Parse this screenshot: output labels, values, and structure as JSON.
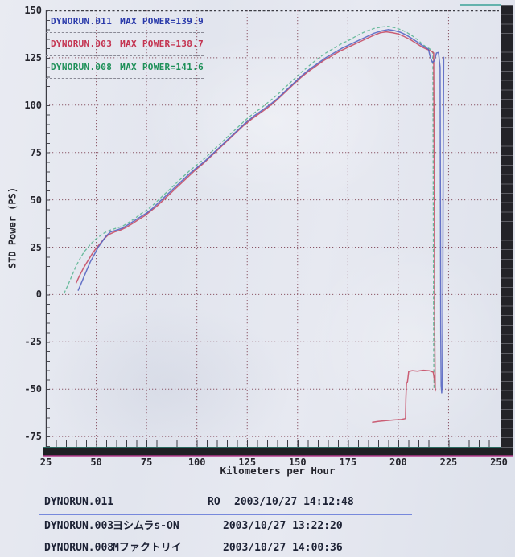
{
  "colors": {
    "paper": "#e4e7ee",
    "grid": "#8a5565",
    "axis_border": "#3c3c44",
    "bottom_bar": "#1f2024",
    "magenta_scan_line": "#b43c8c",
    "row_separator": "#6478d8",
    "run_011": "#2a3aaa",
    "run_003": "#c43350",
    "run_008": "#1d9058"
  },
  "chart_data": {
    "type": "line",
    "title": "",
    "xlabel": "Kilometers per Hour",
    "ylabel": "STD Power (PS)",
    "xlim": [
      25,
      250
    ],
    "ylim": [
      -80,
      150
    ],
    "x_ticks": [
      25,
      50,
      75,
      100,
      125,
      150,
      175,
      200,
      225,
      250
    ],
    "y_ticks": [
      150,
      125,
      100,
      75,
      50,
      25,
      0,
      -25,
      -50,
      -75
    ],
    "grid": "dotted",
    "legend_position": "top-left",
    "legend": [
      {
        "label": "DYNORUN.011",
        "max_label": "MAX POWER=139.9",
        "color": "#2a3aaa"
      },
      {
        "label": "DYNORUN.003",
        "max_label": "MAX POWER=138.7",
        "color": "#c43350"
      },
      {
        "label": "DYNORUN.008",
        "max_label": "MAX POWER=141.6",
        "color": "#1d9058"
      }
    ],
    "series": [
      {
        "name": "DYNORUN.008",
        "max_power": 141.6,
        "color": "#5cb694",
        "dash": "4 2.5",
        "width": 1.3,
        "points": [
          [
            34,
            0.5
          ],
          [
            36,
            5
          ],
          [
            38,
            10
          ],
          [
            40,
            15
          ],
          [
            42,
            19
          ],
          [
            44,
            22.5
          ],
          [
            46,
            25
          ],
          [
            48,
            27.5
          ],
          [
            50,
            29.5
          ],
          [
            52,
            31
          ],
          [
            54,
            32.5
          ],
          [
            57,
            34
          ],
          [
            60,
            35
          ],
          [
            63,
            36
          ],
          [
            66,
            38
          ],
          [
            69,
            40
          ],
          [
            72,
            42.5
          ],
          [
            75,
            44.5
          ],
          [
            78,
            47
          ],
          [
            81,
            50
          ],
          [
            84,
            53
          ],
          [
            87,
            56
          ],
          [
            90,
            59
          ],
          [
            93,
            62
          ],
          [
            96,
            65
          ],
          [
            100,
            68.5
          ],
          [
            104,
            72
          ],
          [
            108,
            76
          ],
          [
            112,
            80
          ],
          [
            116,
            84
          ],
          [
            120,
            88
          ],
          [
            124,
            92
          ],
          [
            128,
            95.5
          ],
          [
            132,
            98.5
          ],
          [
            136,
            102
          ],
          [
            140,
            105.5
          ],
          [
            144,
            109.5
          ],
          [
            148,
            113.5
          ],
          [
            152,
            117.5
          ],
          [
            156,
            121
          ],
          [
            160,
            124.5
          ],
          [
            164,
            127.5
          ],
          [
            168,
            130
          ],
          [
            172,
            132.5
          ],
          [
            176,
            134.5
          ],
          [
            180,
            137
          ],
          [
            184,
            139
          ],
          [
            188,
            140.5
          ],
          [
            192,
            141.3
          ],
          [
            195,
            141.6
          ],
          [
            198,
            141
          ],
          [
            201,
            140
          ],
          [
            204,
            138.6
          ],
          [
            207,
            136.6
          ],
          [
            210,
            134.2
          ],
          [
            212,
            132.2
          ],
          [
            214,
            130.6
          ],
          [
            215.5,
            129.8
          ],
          [
            216.5,
            129
          ],
          [
            217.2,
            128.4
          ],
          [
            217.4,
            50
          ],
          [
            217.6,
            -30
          ],
          [
            217.8,
            -50
          ]
        ]
      },
      {
        "name": "DYNORUN.003",
        "max_power": 138.7,
        "color": "#c64e66",
        "dash": "",
        "width": 1.5,
        "points": [
          [
            40,
            6
          ],
          [
            42,
            10.5
          ],
          [
            44,
            14.5
          ],
          [
            46,
            18
          ],
          [
            48,
            21.5
          ],
          [
            50,
            24.5
          ],
          [
            52,
            27
          ],
          [
            54,
            29.5
          ],
          [
            56,
            31.5
          ],
          [
            59,
            33
          ],
          [
            62,
            34
          ],
          [
            65,
            35.5
          ],
          [
            68,
            37.5
          ],
          [
            71,
            39.5
          ],
          [
            74,
            41.5
          ],
          [
            77,
            44
          ],
          [
            80,
            46.5
          ],
          [
            83,
            49.5
          ],
          [
            86,
            52.5
          ],
          [
            89,
            55.5
          ],
          [
            92,
            58.5
          ],
          [
            95,
            61.5
          ],
          [
            99,
            65.5
          ],
          [
            103,
            69
          ],
          [
            107,
            73
          ],
          [
            111,
            77
          ],
          [
            115,
            81
          ],
          [
            119,
            85
          ],
          [
            123,
            89
          ],
          [
            127,
            92.5
          ],
          [
            131,
            95.5
          ],
          [
            135,
            98.5
          ],
          [
            139,
            102
          ],
          [
            143,
            106
          ],
          [
            147,
            110
          ],
          [
            151,
            114
          ],
          [
            155,
            117.5
          ],
          [
            159,
            120.5
          ],
          [
            163,
            123.5
          ],
          [
            167,
            126
          ],
          [
            171,
            128.5
          ],
          [
            175,
            130.5
          ],
          [
            179,
            132.5
          ],
          [
            183,
            134.5
          ],
          [
            187,
            136.5
          ],
          [
            191,
            138.2
          ],
          [
            194,
            138.7
          ],
          [
            197,
            138.3
          ],
          [
            200,
            137.6
          ],
          [
            203,
            136.2
          ],
          [
            206,
            134.6
          ],
          [
            209,
            132.6
          ],
          [
            212,
            130.6
          ],
          [
            214,
            129.6
          ],
          [
            215.5,
            129
          ],
          [
            216.8,
            128.2
          ],
          [
            217.6,
            127.5
          ],
          [
            217.9,
            60
          ],
          [
            218.1,
            -20
          ],
          [
            218.4,
            -51
          ],
          [
            218.1,
            -46
          ],
          [
            217.4,
            -41
          ],
          [
            215.5,
            -40.3
          ],
          [
            212.5,
            -40
          ],
          [
            209.5,
            -40.5
          ],
          [
            207,
            -40.2
          ],
          [
            205.2,
            -40.6
          ],
          [
            204.6,
            -46
          ],
          [
            204.1,
            -47
          ],
          [
            203.8,
            -55
          ],
          [
            203.6,
            -65.5
          ],
          [
            201.5,
            -66
          ],
          [
            198,
            -66.2
          ],
          [
            194,
            -66.6
          ],
          [
            190,
            -67
          ],
          [
            187,
            -67.5
          ]
        ]
      },
      {
        "name": "DYNORUN.011",
        "max_power": 139.9,
        "color": "#5866c2",
        "dash": "",
        "width": 1.5,
        "points": [
          [
            41,
            2
          ],
          [
            43,
            7
          ],
          [
            45,
            12
          ],
          [
            47,
            17
          ],
          [
            49,
            21
          ],
          [
            51,
            25
          ],
          [
            53,
            28
          ],
          [
            55,
            31
          ],
          [
            57,
            33
          ],
          [
            60,
            34
          ],
          [
            63,
            35
          ],
          [
            66,
            37
          ],
          [
            69,
            39
          ],
          [
            72,
            41
          ],
          [
            75,
            43
          ],
          [
            78,
            45.5
          ],
          [
            81,
            48.5
          ],
          [
            84,
            51.5
          ],
          [
            87,
            54.5
          ],
          [
            90,
            57.5
          ],
          [
            93,
            60.5
          ],
          [
            96,
            63.5
          ],
          [
            100,
            67
          ],
          [
            104,
            70.5
          ],
          [
            108,
            74.5
          ],
          [
            112,
            78.5
          ],
          [
            116,
            82.5
          ],
          [
            120,
            86.5
          ],
          [
            124,
            90.5
          ],
          [
            128,
            94
          ],
          [
            132,
            97
          ],
          [
            136,
            100
          ],
          [
            140,
            103.5
          ],
          [
            144,
            107.5
          ],
          [
            148,
            111.5
          ],
          [
            152,
            115.5
          ],
          [
            156,
            119
          ],
          [
            160,
            122
          ],
          [
            164,
            125
          ],
          [
            168,
            127.5
          ],
          [
            172,
            130
          ],
          [
            176,
            132
          ],
          [
            180,
            134
          ],
          [
            184,
            136
          ],
          [
            188,
            138
          ],
          [
            192,
            139.3
          ],
          [
            195,
            139.9
          ],
          [
            198,
            139.4
          ],
          [
            201,
            138.5
          ],
          [
            204,
            137
          ],
          [
            207,
            135
          ],
          [
            210,
            133
          ],
          [
            212,
            131.5
          ],
          [
            213.5,
            130.5
          ],
          [
            215,
            129.5
          ],
          [
            216,
            125
          ],
          [
            217,
            122.5
          ],
          [
            218,
            123.5
          ],
          [
            219,
            127.5
          ],
          [
            220,
            127.8
          ],
          [
            220.8,
            120
          ],
          [
            221.1,
            -20
          ],
          [
            221.3,
            -48
          ],
          [
            221.6,
            -52
          ],
          [
            221.9,
            -46
          ],
          [
            222.1,
            -10
          ],
          [
            222.3,
            70
          ],
          [
            222.6,
            125.5
          ]
        ]
      }
    ]
  },
  "table": {
    "rows": [
      {
        "name": "DYNORUN.011",
        "label": "RO",
        "datetime": "2003/10/27 14:12:48"
      },
      {
        "name": "DYNORUN.003",
        "label": "ヨシムラs-ON",
        "datetime": "2003/10/27 13:22:20"
      },
      {
        "name": "DYNORUN.008",
        "label": "Mファクトリイ",
        "datetime": "2003/10/27 14:00:36"
      }
    ]
  }
}
